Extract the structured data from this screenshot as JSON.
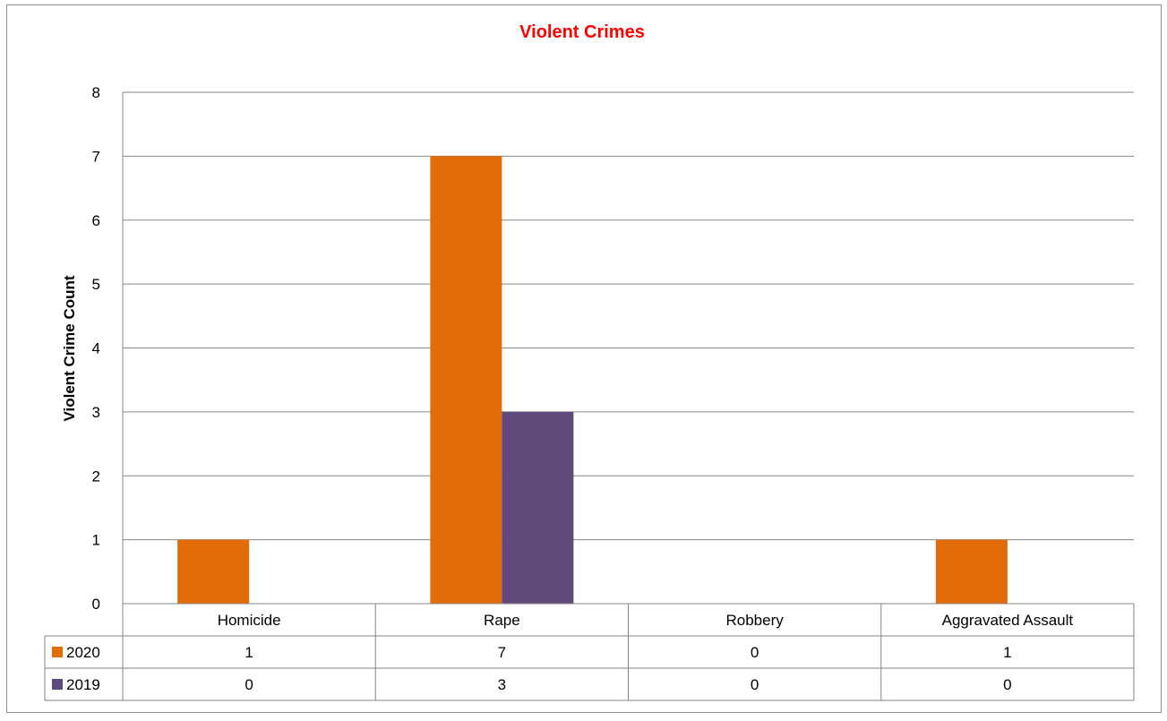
{
  "chart_data": {
    "type": "bar",
    "title": "Violent Crimes",
    "title_color": "#ff0000",
    "ylabel": "Violent Crime Count",
    "xlabel": "",
    "categories": [
      "Homicide",
      "Rape",
      "Robbery",
      "Aggravated Assault"
    ],
    "ylim": [
      0,
      8
    ],
    "yticks": [
      "0",
      "1",
      "2",
      "3",
      "4",
      "5",
      "6",
      "7",
      "8"
    ],
    "grid": true,
    "legend_placement": "data-table",
    "series": [
      {
        "name": "2020",
        "values": [
          1,
          7,
          0,
          1
        ],
        "color": "#e36c0a"
      },
      {
        "name": "2019",
        "values": [
          0,
          3,
          0,
          0
        ],
        "color": "#604a7b"
      }
    ]
  }
}
